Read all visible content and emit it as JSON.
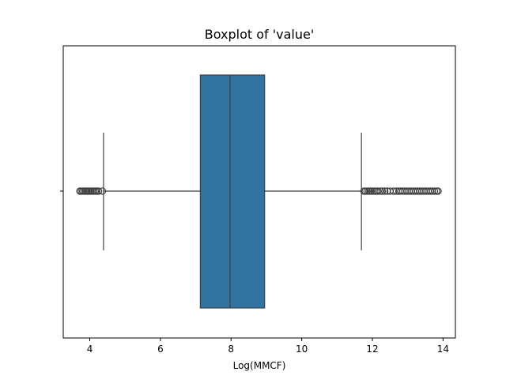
{
  "chart_data": {
    "type": "boxplot",
    "title": "Boxplot of 'value'",
    "xlabel": "Log(MMCF)",
    "ylabel": "",
    "xlim": [
      3.25,
      14.35
    ],
    "xticks": [
      4,
      6,
      8,
      10,
      12,
      14
    ],
    "xtick_labels": [
      "4",
      "6",
      "8",
      "10",
      "12",
      "14"
    ],
    "grid": false,
    "box": {
      "whisker_low": 4.39,
      "q1": 7.13,
      "median": 7.97,
      "q3": 8.95,
      "whisker_high": 11.69
    },
    "outliers_low": [
      3.72,
      3.76,
      3.8,
      3.84,
      3.88,
      3.92,
      3.96,
      4.0,
      4.04,
      4.08,
      4.12,
      4.16,
      4.2,
      4.25,
      4.36
    ],
    "outliers_high": [
      11.76,
      11.8,
      11.85,
      11.9,
      11.95,
      12.0,
      12.05,
      12.1,
      12.15,
      12.22,
      12.28,
      12.35,
      12.42,
      12.5,
      12.6,
      12.68,
      12.75,
      12.8,
      12.86,
      12.92,
      12.98,
      13.04,
      13.1,
      13.16,
      13.22,
      13.28,
      13.34,
      13.4,
      13.46,
      13.52,
      13.58,
      13.64,
      13.7,
      13.76,
      13.82,
      13.86
    ],
    "colors": {
      "box_fill": "#3274a1",
      "lines": "#3f3f3f",
      "axes": "#000000"
    }
  }
}
